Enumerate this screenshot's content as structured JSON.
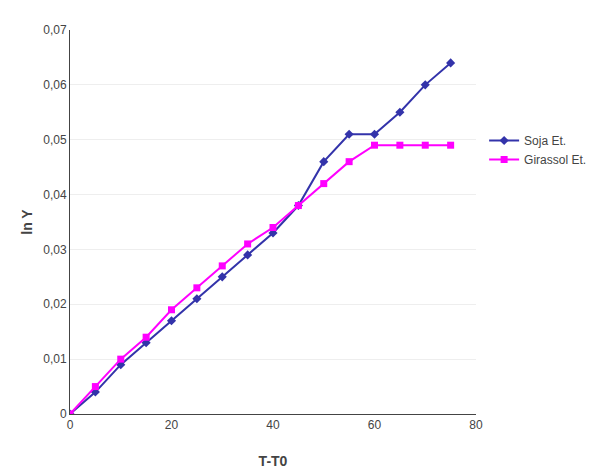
{
  "chart_data": {
    "type": "line",
    "x_label": "T-T0",
    "y_label": "ln Y",
    "x": [
      0,
      5,
      10,
      15,
      20,
      25,
      30,
      35,
      40,
      45,
      50,
      55,
      60,
      65,
      70,
      75
    ],
    "series": [
      {
        "name": "Soja Et.",
        "color": "#3333aa",
        "marker": "diamond",
        "values": [
          0,
          0.004,
          0.009,
          0.013,
          0.017,
          0.021,
          0.025,
          0.029,
          0.033,
          0.038,
          0.046,
          0.051,
          0.051,
          0.055,
          0.06,
          0.064
        ]
      },
      {
        "name": "Girassol Et.",
        "color": "#ff00ff",
        "marker": "square",
        "values": [
          0,
          0.005,
          0.01,
          0.014,
          0.019,
          0.023,
          0.027,
          0.031,
          0.034,
          0.038,
          0.042,
          0.046,
          0.049,
          0.049,
          0.049,
          0.049
        ]
      }
    ],
    "xlim": [
      0,
      80
    ],
    "xticks": [
      0,
      20,
      40,
      60,
      80
    ],
    "ylim": [
      0,
      0.07
    ],
    "yticks": [
      0,
      {
        "value": 0.01,
        "label": "0,01"
      },
      {
        "value": 0.02,
        "label": "0,02"
      },
      {
        "value": 0.03,
        "label": "0,03"
      },
      {
        "value": 0.04,
        "label": "0,04"
      },
      {
        "value": 0.05,
        "label": "0,05"
      },
      {
        "value": 0.06,
        "label": "0,06"
      },
      {
        "value": 0.07,
        "label": "0,07"
      }
    ],
    "grid": true,
    "legend": "right"
  }
}
